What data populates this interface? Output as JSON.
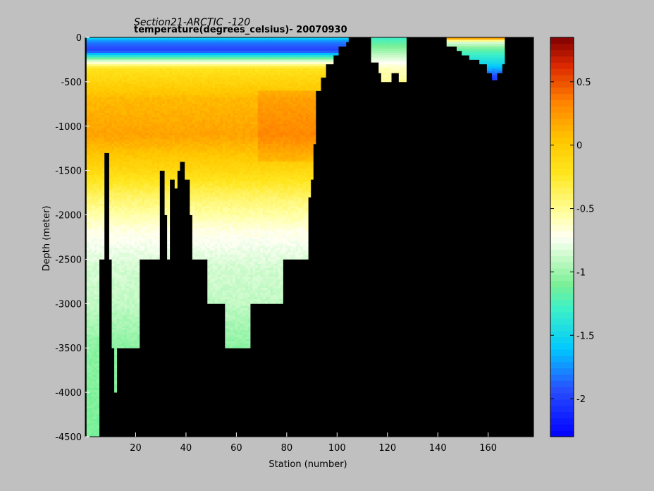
{
  "window": {
    "title_line_1": "Section21-ARCTIC_-120",
    "title_line_2": "temperature(degrees_celsius)- 20070930"
  },
  "chart_data": {
    "type": "heatmap",
    "title": "Section21-ARCTIC_-120",
    "subtitle": "temperature(degrees_celsius)- 20070930",
    "xlabel": "Station (number)",
    "ylabel": "Depth (meter)",
    "xlim": [
      0,
      178
    ],
    "ylim": [
      -4500,
      0
    ],
    "x_ticks": [
      20,
      40,
      60,
      80,
      100,
      120,
      140,
      160
    ],
    "y_ticks": [
      0,
      -500,
      -1000,
      -1500,
      -2000,
      -2500,
      -3000,
      -3500,
      -4000,
      -4500
    ],
    "colorbar": {
      "min": -2.3,
      "max": 0.85,
      "ticks": [
        0.5,
        0,
        -0.5,
        -1,
        -1.5,
        -2
      ],
      "colormap": "jet-like (blue-cyan-green-white-yellow-orange-red)"
    },
    "no_data_color": "#000000",
    "series": [
      {
        "x_start": 1,
        "x_end": 104,
        "bottom_by_station": [
          [
            1,
            4500
          ],
          [
            5,
            4500
          ],
          [
            6,
            2500
          ],
          [
            10,
            2500
          ],
          [
            11,
            3500
          ],
          [
            12,
            4000
          ],
          [
            13,
            3500
          ],
          [
            21,
            3500
          ],
          [
            22,
            2500
          ],
          [
            29,
            2500
          ],
          [
            30,
            1700
          ],
          [
            32,
            2000
          ],
          [
            33,
            2500
          ],
          [
            34,
            2200
          ],
          [
            35,
            1700
          ],
          [
            37,
            1500
          ],
          [
            38,
            1400
          ],
          [
            40,
            1600
          ],
          [
            42,
            2000
          ],
          [
            43,
            2500
          ],
          [
            48,
            2500
          ],
          [
            49,
            3000
          ],
          [
            55,
            3000
          ],
          [
            56,
            3500
          ],
          [
            65,
            3500
          ],
          [
            66,
            3000
          ],
          [
            78,
            3000
          ],
          [
            79,
            2500
          ],
          [
            88,
            2500
          ],
          [
            89,
            1800
          ],
          [
            90,
            1600
          ],
          [
            91,
            1200
          ],
          [
            92,
            600
          ],
          [
            94,
            450
          ],
          [
            96,
            300
          ],
          [
            99,
            200
          ],
          [
            101,
            100
          ],
          [
            104,
            50
          ]
        ],
        "gaps_in_range": [
          [
            8,
            9,
            1300,
            4500
          ],
          [
            30,
            31,
            1500,
            2500
          ],
          [
            34,
            35,
            1600,
            2500
          ],
          [
            38,
            39,
            1400,
            2500
          ]
        ],
        "profile": [
          {
            "depth": 0,
            "temp": -1.5
          },
          {
            "depth": 50,
            "temp": -1.8
          },
          {
            "depth": 150,
            "temp": -2.0
          },
          {
            "depth": 220,
            "temp": -1.3
          },
          {
            "depth": 280,
            "temp": -0.7
          },
          {
            "depth": 350,
            "temp": -0.2
          },
          {
            "depth": 700,
            "temp": 0.1
          },
          {
            "depth": 1100,
            "temp": 0.2
          },
          {
            "depth": 1500,
            "temp": -0.1
          },
          {
            "depth": 1800,
            "temp": -0.4
          },
          {
            "depth": 2200,
            "temp": -0.7
          },
          {
            "depth": 2600,
            "temp": -0.85
          },
          {
            "depth": 3000,
            "temp": -0.9
          },
          {
            "depth": 3500,
            "temp": -1.05
          },
          {
            "depth": 4500,
            "temp": -1.1
          }
        ]
      },
      {
        "x_start": 114,
        "x_end": 127,
        "bottom_by_station": [
          [
            114,
            280
          ],
          [
            117,
            400
          ],
          [
            118,
            500
          ],
          [
            122,
            400
          ],
          [
            125,
            500
          ],
          [
            127,
            500
          ]
        ],
        "profile": [
          {
            "depth": 0,
            "temp": -1.3
          },
          {
            "depth": 150,
            "temp": -1.0
          },
          {
            "depth": 250,
            "temp": -0.8
          },
          {
            "depth": 350,
            "temp": -0.6
          },
          {
            "depth": 500,
            "temp": -0.5
          }
        ]
      },
      {
        "x_start": 144,
        "x_end": 166,
        "bottom_by_station": [
          [
            144,
            100
          ],
          [
            148,
            150
          ],
          [
            150,
            200
          ],
          [
            153,
            250
          ],
          [
            157,
            300
          ],
          [
            160,
            400
          ],
          [
            162,
            480
          ],
          [
            164,
            400
          ],
          [
            166,
            300
          ]
        ],
        "profile": [
          {
            "depth": 0,
            "temp": 0.5
          },
          {
            "depth": 50,
            "temp": -0.8
          },
          {
            "depth": 150,
            "temp": -1.2
          },
          {
            "depth": 300,
            "temp": -1.5
          },
          {
            "depth": 450,
            "temp": -2.0
          }
        ]
      }
    ]
  }
}
